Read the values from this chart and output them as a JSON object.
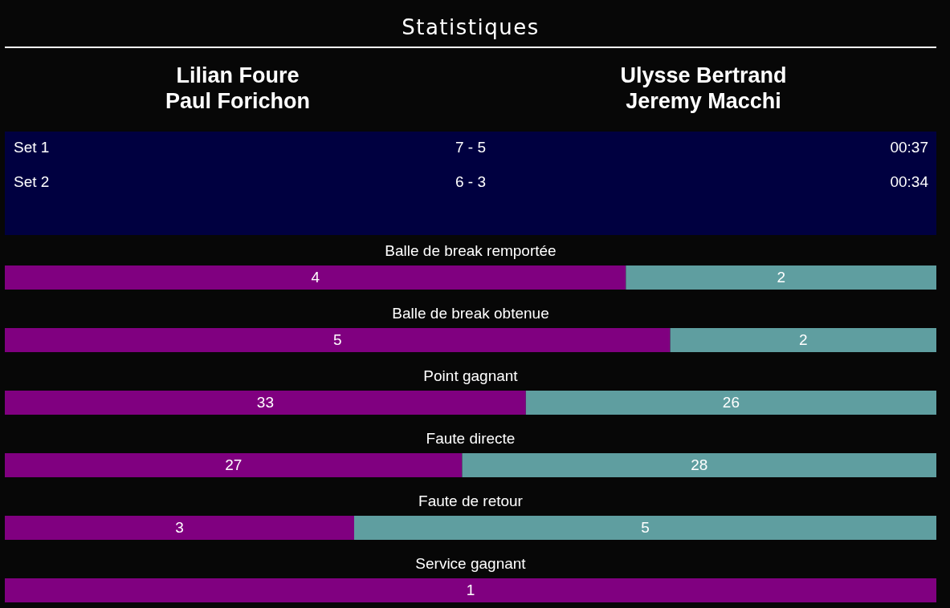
{
  "chart_data": [
    {
      "type": "other",
      "title": "Statistiques",
      "annotations": [
        "Lilian Foure",
        "Paul Forichon",
        "Ulysse Bertrand",
        "Jeremy Macchi",
        "Set 1",
        "7 - 5",
        "00:37",
        "Set 2",
        "6 - 3",
        "00:34"
      ]
    },
    {
      "type": "bar",
      "orientation": "horizontal",
      "stacked": true,
      "data_labels": true,
      "categories": [
        "Balle de break remportée"
      ],
      "series": [
        {
          "color": "#800080",
          "values": [
            4
          ]
        },
        {
          "color": "#5f9ea0",
          "values": [
            2
          ]
        }
      ]
    },
    {
      "type": "bar",
      "orientation": "horizontal",
      "stacked": true,
      "data_labels": true,
      "categories": [
        "Balle de break obtenue"
      ],
      "series": [
        {
          "color": "#800080",
          "values": [
            5
          ]
        },
        {
          "color": "#5f9ea0",
          "values": [
            2
          ]
        }
      ]
    },
    {
      "type": "bar",
      "orientation": "horizontal",
      "stacked": true,
      "data_labels": true,
      "categories": [
        "Point gagnant"
      ],
      "series": [
        {
          "color": "#800080",
          "values": [
            33
          ]
        },
        {
          "color": "#5f9ea0",
          "values": [
            26
          ]
        }
      ]
    },
    {
      "type": "bar",
      "orientation": "horizontal",
      "stacked": true,
      "data_labels": true,
      "categories": [
        "Faute directe"
      ],
      "series": [
        {
          "color": "#800080",
          "values": [
            27
          ]
        },
        {
          "color": "#5f9ea0",
          "values": [
            28
          ]
        }
      ]
    },
    {
      "type": "bar",
      "orientation": "horizontal",
      "stacked": true,
      "data_labels": true,
      "categories": [
        "Faute de retour"
      ],
      "series": [
        {
          "color": "#800080",
          "values": [
            3
          ]
        },
        {
          "color": "#5f9ea0",
          "values": [
            5
          ]
        }
      ]
    },
    {
      "type": "bar",
      "orientation": "horizontal",
      "stacked": true,
      "data_labels": true,
      "categories": [
        "Service gagnant"
      ],
      "series": [
        {
          "color": "#800080",
          "values": [
            1
          ]
        }
      ]
    }
  ]
}
